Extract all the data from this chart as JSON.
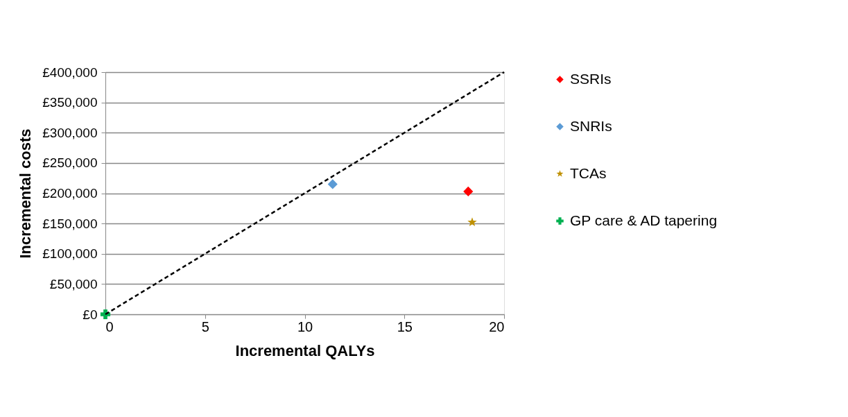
{
  "chart_data": {
    "type": "scatter",
    "xlabel": "Incremental QALYs",
    "ylabel": "Incremental costs",
    "xlim": [
      0,
      20
    ],
    "xticks": [
      0,
      5,
      10,
      15,
      20
    ],
    "ylim": [
      0,
      400000
    ],
    "yticks": [
      {
        "value": 0,
        "label": "£0"
      },
      {
        "value": 50000,
        "label": "£50,000"
      },
      {
        "value": 100000,
        "label": "£100,000"
      },
      {
        "value": 150000,
        "label": "£150,000"
      },
      {
        "value": 200000,
        "label": "£200,000"
      },
      {
        "value": 250000,
        "label": "£250,000"
      },
      {
        "value": 300000,
        "label": "£300,000"
      },
      {
        "value": 350000,
        "label": "£350,000"
      },
      {
        "value": 400000,
        "label": "£400,000"
      }
    ],
    "grid": "y",
    "legend": "right",
    "series": [
      {
        "name": "SSRIs",
        "color": "#ff0000",
        "marker": "diamond",
        "x": [
          18.2
        ],
        "values": [
          203000
        ]
      },
      {
        "name": "SNRIs",
        "color": "#5b9bd5",
        "marker": "diamond",
        "x": [
          11.4
        ],
        "values": [
          215000
        ]
      },
      {
        "name": "TCAs",
        "color": "#bf9000",
        "marker": "star",
        "x": [
          18.4
        ],
        "values": [
          152000
        ]
      },
      {
        "name": "GP care & AD tapering",
        "color": "#00b050",
        "marker": "cross",
        "x": [
          0
        ],
        "values": [
          0
        ]
      },
      {
        "type": "line",
        "color": "#000000",
        "line_style": "dashed",
        "marker": "none",
        "x": [
          0,
          20
        ],
        "values": [
          0,
          400000
        ]
      }
    ]
  }
}
